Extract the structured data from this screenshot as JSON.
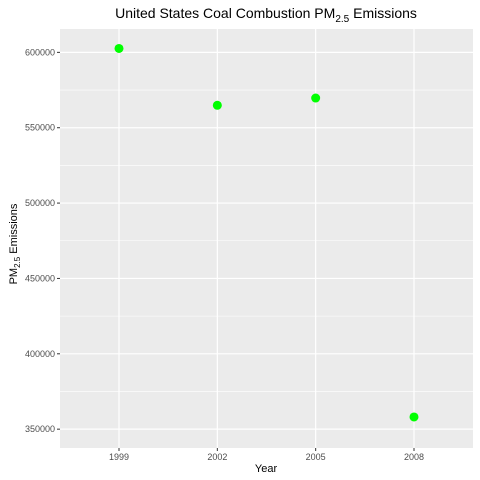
{
  "chart_data": {
    "type": "scatter",
    "title_main": "United States Coal Combustion PM",
    "title_sub": "2.5",
    "title_end": " Emissions",
    "xlabel": "Year",
    "ylabel_main": "PM",
    "ylabel_sub": "2.5",
    "ylabel_end": " Emissions",
    "x_categories": [
      "1999",
      "2002",
      "2005",
      "2008"
    ],
    "y_ticks": [
      {
        "value": 350000,
        "label": "350000"
      },
      {
        "value": 400000,
        "label": "400000"
      },
      {
        "value": 450000,
        "label": "450000"
      },
      {
        "value": 500000,
        "label": "500000"
      },
      {
        "value": 550000,
        "label": "550000"
      },
      {
        "value": 600000,
        "label": "600000"
      }
    ],
    "ylim": [
      337500,
      615500
    ],
    "points": [
      {
        "x": "1999",
        "y": 602600
      },
      {
        "x": "2002",
        "y": 564900
      },
      {
        "x": "2005",
        "y": 569700
      },
      {
        "x": "2008",
        "y": 358100
      }
    ],
    "point_color": "#00ff00",
    "panel_background": "#ebebeb",
    "grid_color": "#ffffff",
    "grid": true,
    "legend": "none"
  }
}
